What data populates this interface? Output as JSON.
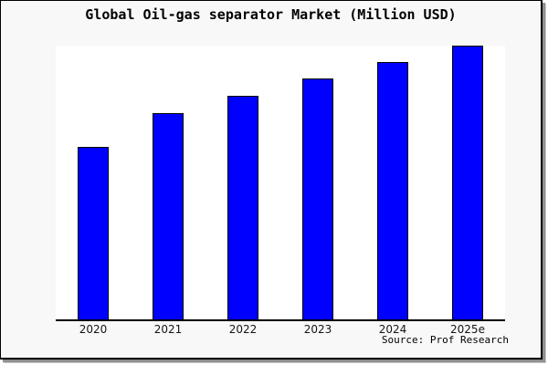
{
  "figure": {
    "title": "Global Oil-gas separator Market (Million USD)",
    "source_credit": "Source: Prof Research",
    "background_color": "#f8f8f8",
    "plot_background_color": "#ffffff",
    "frame_border_color": "#000000",
    "frame_shadow_color": "#8f8f8f",
    "bar_fill_color": "#0000ff",
    "bar_edge_color": "#000000",
    "axis_line_color": "#000000"
  },
  "chart_data": {
    "type": "bar",
    "title": "Global Oil-gas separator Market (Million USD)",
    "categories": [
      "2020",
      "2021",
      "2022",
      "2023",
      "2024",
      "2025e"
    ],
    "values": [
      62.9,
      75.3,
      81.6,
      88.0,
      94.0,
      100.0
    ],
    "unit_note": "y-axis unlabeled; values estimated as relative bar heights, % of the 2025e bar",
    "xlabel": "",
    "ylabel": "",
    "ylim": [
      0,
      100.4
    ],
    "grid": false,
    "legend": false,
    "yaxis_visible": false,
    "annotation": "Source: Prof Research"
  }
}
